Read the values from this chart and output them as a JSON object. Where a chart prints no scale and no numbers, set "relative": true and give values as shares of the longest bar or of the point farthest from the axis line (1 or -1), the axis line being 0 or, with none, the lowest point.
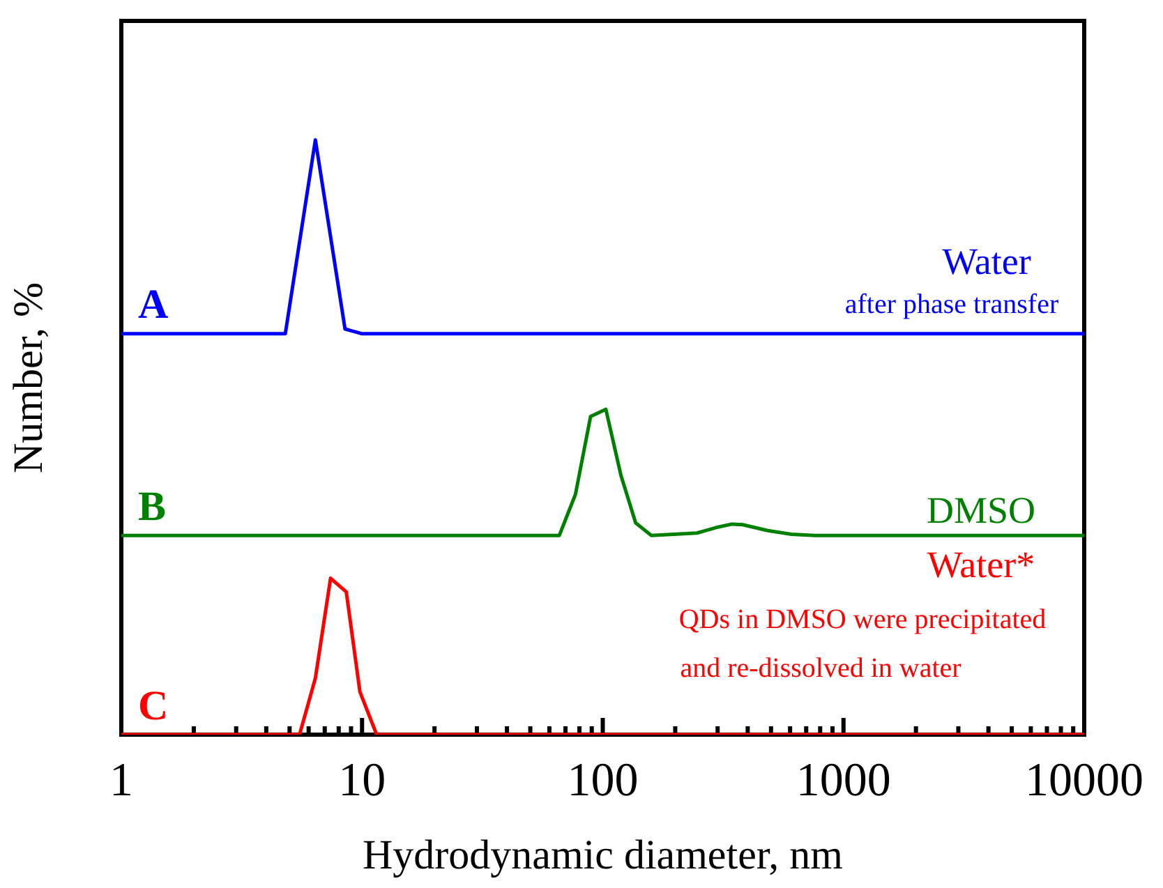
{
  "chart_data": {
    "type": "line",
    "relative": true,
    "xlabel": "Hydrodynamic diameter, nm",
    "ylabel": "Number, %",
    "log": "x",
    "grid": false,
    "legend": false,
    "marker": "none",
    "line_style": "solid",
    "xlim": [
      1,
      10000
    ],
    "xticks": [
      1,
      {
        "value": 2,
        "label": null
      },
      {
        "value": 3,
        "label": null
      },
      {
        "value": 4,
        "label": null
      },
      {
        "value": 5,
        "label": null
      },
      {
        "value": 6,
        "label": null
      },
      {
        "value": 7,
        "label": null
      },
      {
        "value": 8,
        "label": null
      },
      {
        "value": 9,
        "label": null
      },
      10,
      {
        "value": 20,
        "label": null
      },
      {
        "value": 30,
        "label": null
      },
      {
        "value": 40,
        "label": null
      },
      {
        "value": 50,
        "label": null
      },
      {
        "value": 60,
        "label": null
      },
      {
        "value": 70,
        "label": null
      },
      {
        "value": 80,
        "label": null
      },
      {
        "value": 90,
        "label": null
      },
      100,
      {
        "value": 200,
        "label": null
      },
      {
        "value": 300,
        "label": null
      },
      {
        "value": 400,
        "label": null
      },
      {
        "value": 500,
        "label": null
      },
      {
        "value": 600,
        "label": null
      },
      {
        "value": 700,
        "label": null
      },
      {
        "value": 800,
        "label": null
      },
      {
        "value": 900,
        "label": null
      },
      1000,
      {
        "value": 2000,
        "label": null
      },
      {
        "value": 3000,
        "label": null
      },
      {
        "value": 4000,
        "label": null
      },
      {
        "value": 5000,
        "label": null
      },
      {
        "value": 6000,
        "label": null
      },
      {
        "value": 7000,
        "label": null
      },
      {
        "value": 8000,
        "label": null
      },
      {
        "value": 9000,
        "label": null
      },
      10000
    ],
    "series": [
      {
        "name": "A",
        "color": "#0000ff",
        "x": [
          1,
          4.8,
          6.4,
          8.5,
          10,
          10000
        ],
        "values": [
          0.674,
          0.674,
          1,
          0.682,
          0.674,
          0.674
        ]
      },
      {
        "name": "B",
        "color": "#008000",
        "x": [
          1,
          66,
          77,
          89,
          103,
          119,
          137,
          159,
          246,
          301,
          344,
          381,
          485,
          608,
          760,
          10000
        ],
        "values": [
          0.335,
          0.335,
          0.404,
          0.535,
          0.547,
          0.436,
          0.356,
          0.335,
          0.339,
          0.349,
          0.354,
          0.353,
          0.343,
          0.337,
          0.335,
          0.335
        ]
      },
      {
        "name": "C",
        "color": "#ff0000",
        "x": [
          1,
          5.5,
          6.4,
          7.4,
          8.6,
          9.8,
          11.5,
          10000
        ],
        "values": [
          0,
          0,
          0.095,
          0.263,
          0.24,
          0.072,
          0,
          0
        ]
      }
    ],
    "annotations": [
      "Water",
      "after phase transfer",
      "DMSO",
      "Water*",
      "QDs in DMSO were precipitated",
      "and re-dissolved in water"
    ]
  }
}
